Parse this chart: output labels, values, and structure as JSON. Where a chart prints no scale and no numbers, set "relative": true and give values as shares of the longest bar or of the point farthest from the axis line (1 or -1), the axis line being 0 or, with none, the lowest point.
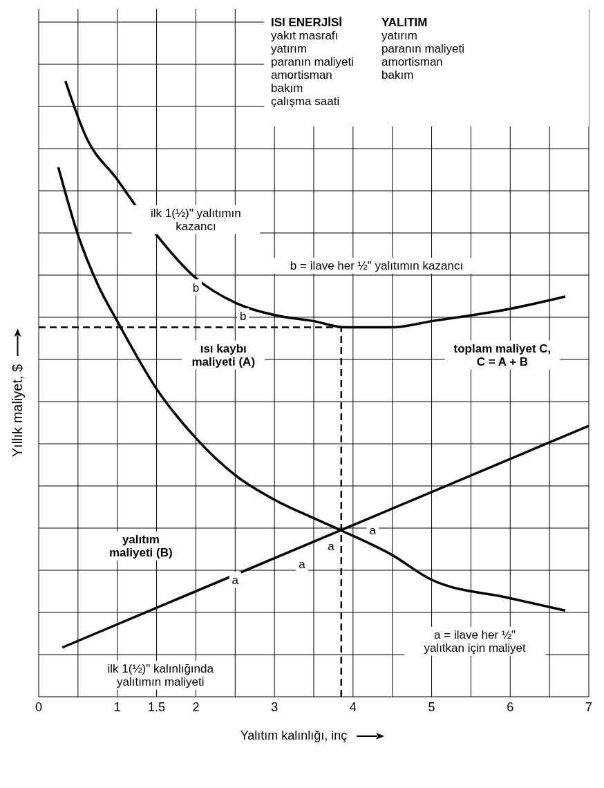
{
  "chart_data": {
    "type": "line",
    "relative": true,
    "xlabel": "Yalıtım kalınlığı, inç",
    "ylabel": "Yıllık maliyet, $",
    "xlim": [
      0,
      7
    ],
    "xticks": [
      0,
      {
        "value": 0.5,
        "label": null
      },
      1,
      1.5,
      2,
      {
        "value": 2.5,
        "label": null
      },
      3,
      {
        "value": 3.5,
        "label": null
      },
      4,
      {
        "value": 4.5,
        "label": null
      },
      5,
      {
        "value": 5.5,
        "label": null
      },
      6,
      {
        "value": 6.5,
        "label": null
      },
      7
    ],
    "grid": true,
    "marker": "none",
    "line_style": "solid",
    "series": [
      {
        "color": "#000000",
        "x": [
          0.34,
          0.6,
          1,
          1.5,
          2,
          2.5,
          3,
          3.5,
          3.9,
          4.5,
          5,
          6,
          6.7
        ],
        "values": [
          1.0,
          0.91,
          0.84,
          0.75,
          0.68,
          0.64,
          0.62,
          0.61,
          0.6,
          0.6,
          0.61,
          0.63,
          0.65
        ]
      },
      {
        "color": "#000000",
        "x": [
          0.25,
          0.5,
          0.75,
          1,
          1.5,
          2,
          2.5,
          3,
          3.5,
          3.85,
          4.5,
          5,
          6,
          6.7
        ],
        "values": [
          0.86,
          0.75,
          0.67,
          0.61,
          0.5,
          0.42,
          0.36,
          0.32,
          0.29,
          0.27,
          0.23,
          0.19,
          0.16,
          0.14
        ]
      },
      {
        "color": "#000000",
        "x": [
          0.3,
          7
        ],
        "values": [
          0.08,
          0.44
        ]
      }
    ],
    "ref_lines": [
      {
        "axis": "y",
        "value": 0.6,
        "line_style": "dashed"
      },
      {
        "axis": "x",
        "value": 3.85,
        "line_style": "dashed"
      }
    ],
    "annotations": [
      "ISI ENERJİSİ\nyakıt masrafı\nyatırım\nparanın maliyeti\namortisman\nbakım\nçalışma saati",
      "YALITIM\nyatırım\nparanın maliyeti\namortisman\nbakım",
      "ilk 1(½)\" yalıtımın\nkazancı",
      "b = ilave her ½\" yalıtımın kazancı",
      "b",
      "b",
      "toplam maliyet C,\nC = A + B",
      "ısı kaybı\nmaliyeti (A)",
      "yalıtım\nmaliyeti (B)",
      "a",
      "a",
      "a",
      "a",
      "a = ilave her ½\"\nyalıtkan için maliyet",
      "ilk 1(½)\" kalınlığında\nyalıtımın maliyeti"
    ]
  }
}
